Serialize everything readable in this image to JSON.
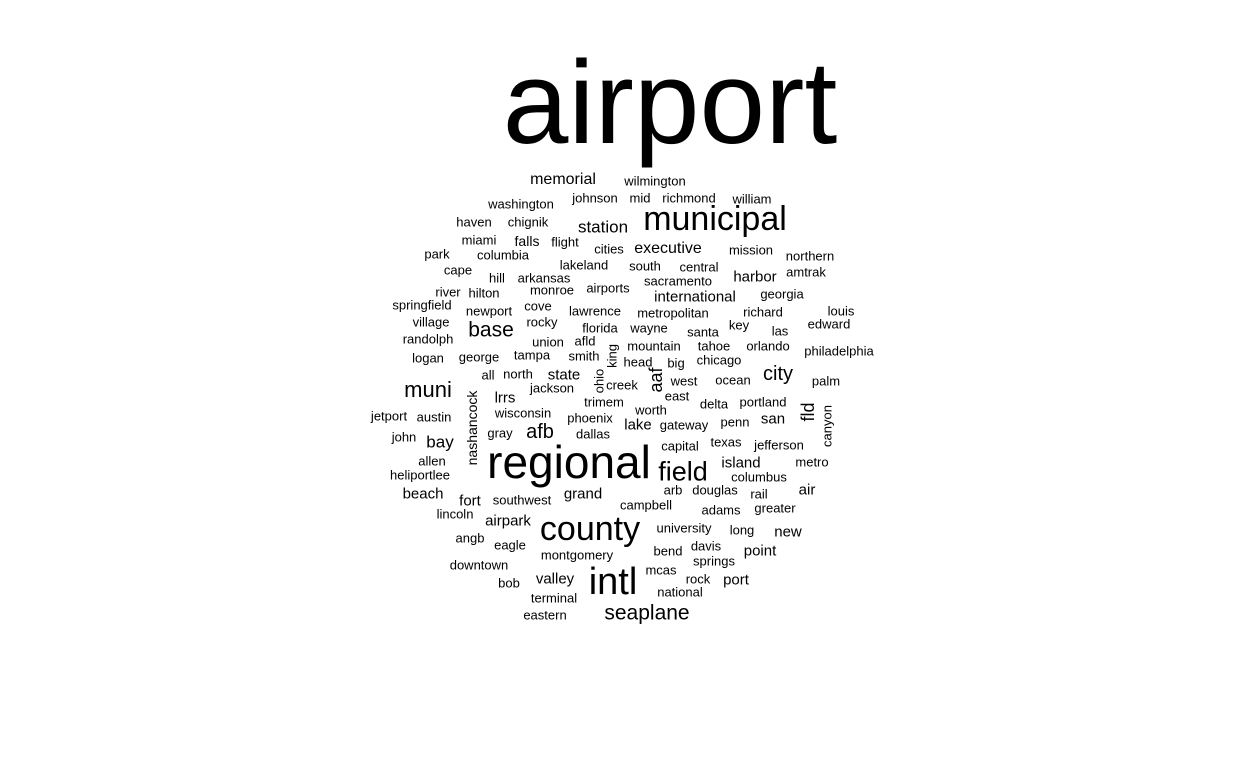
{
  "words": [
    "airport",
    "regional",
    "intl",
    "county",
    "municipal",
    "field",
    "seaplane",
    "muni",
    "base",
    "afb",
    "city",
    "memorial",
    "station",
    "executive",
    "international",
    "harbor",
    "fld",
    "aaf",
    "state",
    "bay",
    "lrrs",
    "beach",
    "fort",
    "grand",
    "airpark",
    "valley",
    "point",
    "port",
    "new",
    "air",
    "island",
    "san",
    "lake",
    "nashancock",
    "falls",
    "cove",
    "wilmington",
    "washington",
    "johnson",
    "mid",
    "richmond",
    "william",
    "haven",
    "chignik",
    "miami",
    "flight",
    "cities",
    "mission",
    "northern",
    "park",
    "columbia",
    "lakeland",
    "south",
    "central",
    "amtrak",
    "cape",
    "hill",
    "arkansas",
    "sacramento",
    "river",
    "hilton",
    "monroe",
    "airports",
    "georgia",
    "springfield",
    "newport",
    "louis",
    "village",
    "rocky",
    "lawrence",
    "metropolitan",
    "richard",
    "edward",
    "florida",
    "wayne",
    "santa",
    "key",
    "las",
    "randolph",
    "union",
    "afld",
    "mountain",
    "tahoe",
    "orlando",
    "philadelphia",
    "logan",
    "george",
    "tampa",
    "smith",
    "head",
    "big",
    "chicago",
    "ohio",
    "king",
    "all",
    "north",
    "west",
    "ocean",
    "palm",
    "jackson",
    "creek",
    "east",
    "trimem",
    "delta",
    "portland",
    "canyon",
    "jetport",
    "austin",
    "wisconsin",
    "phoenix",
    "worth",
    "gray",
    "dallas",
    "gateway",
    "penn",
    "john",
    "capital",
    "texas",
    "jefferson",
    "allen",
    "metro",
    "heliportlee",
    "arb",
    "douglas",
    "columbus",
    "southwest",
    "campbell",
    "rail",
    "lincoln",
    "adams",
    "greater",
    "university",
    "long",
    "angb",
    "eagle",
    "davis",
    "montgomery",
    "bend",
    "downtown",
    "springs",
    "mcas",
    "bob",
    "rock",
    "terminal",
    "national",
    "eastern"
  ]
}
